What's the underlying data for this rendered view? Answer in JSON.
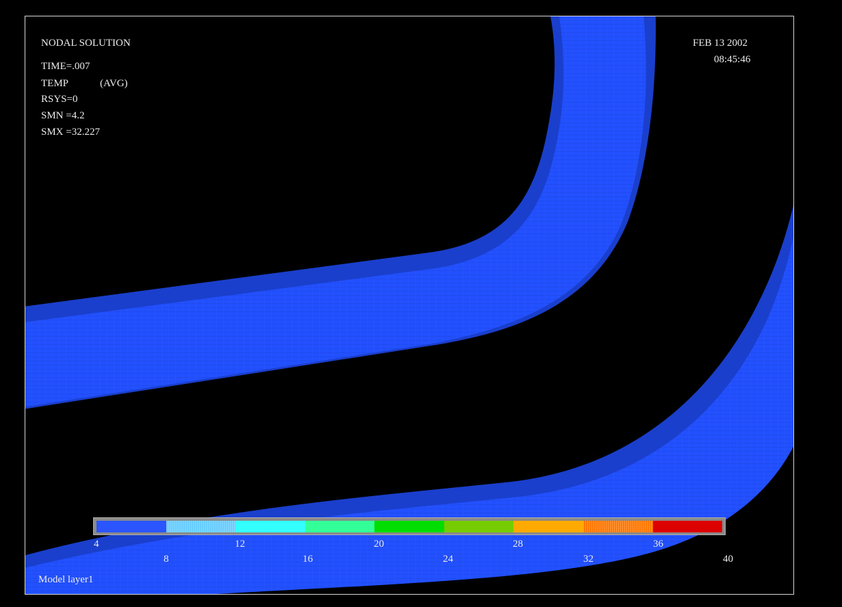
{
  "header": {
    "title": "NODAL SOLUTION",
    "time": "TIME=.007",
    "temp_label": "TEMP",
    "temp_avg": "(AVG)",
    "rsys": "RSYS=0",
    "smn": "SMN =4.2",
    "smx": "SMX =32.227"
  },
  "timestamp": {
    "date": "FEB 13 2002",
    "time": "08:45:46"
  },
  "footer": {
    "model_label": "Model layer1"
  },
  "legend": {
    "colors": [
      "#2b55ff",
      "#66ccff",
      "#33ffff",
      "#33ff99",
      "#00dd00",
      "#77cc00",
      "#ffaa00",
      "#ff7700",
      "#dd0000"
    ],
    "ticks_top": [
      "4",
      "12",
      "20",
      "28",
      "36"
    ],
    "ticks_bottom": [
      "8",
      "16",
      "24",
      "32",
      "40"
    ]
  },
  "colors": {
    "strip_fill": "#2250ff",
    "strip_edge": "#1a3fcc",
    "background": "#000000",
    "frame": "#d8d8d8"
  }
}
